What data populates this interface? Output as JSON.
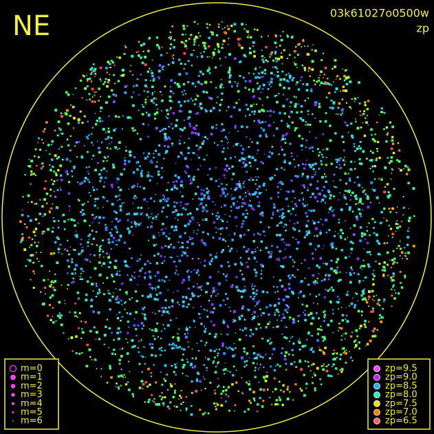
{
  "header": {
    "corner": "NE",
    "frame_id": "03k61027o0500w",
    "mode": "zp"
  },
  "size_legend": {
    "items": [
      "m=0",
      "m=1",
      "m=2",
      "m=3",
      "m=4",
      "m=5",
      "m=6"
    ]
  },
  "zp_legend": {
    "items": [
      {
        "label": "zp=9.5",
        "color": "#ff40ff"
      },
      {
        "label": "zp=9.0",
        "color": "#c020ff"
      },
      {
        "label": "zp=8.5",
        "color": "#20b0ff"
      },
      {
        "label": "zp=8.0",
        "color": "#20f0c0"
      },
      {
        "label": "zp=7.5",
        "color": "#f0e000"
      },
      {
        "label": "zp=7.0",
        "color": "#ff8000"
      },
      {
        "label": "zp=6.5",
        "color": "#ff6060"
      }
    ]
  }
}
